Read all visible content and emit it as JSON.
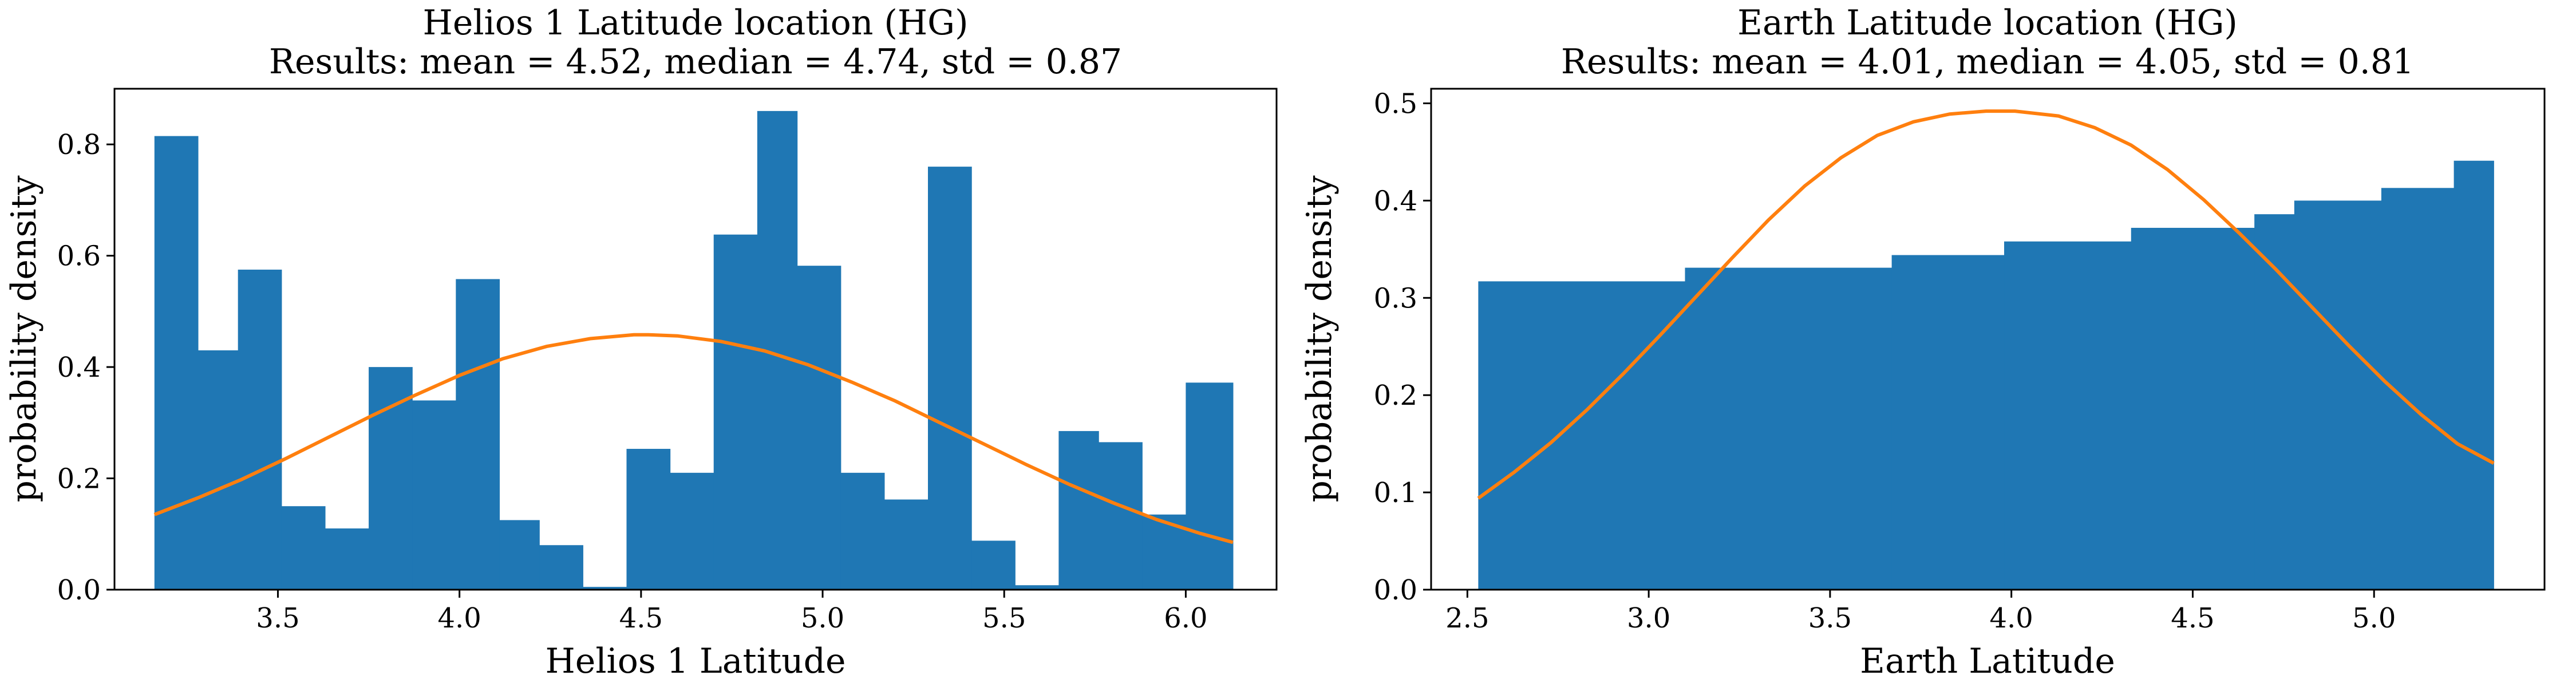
{
  "chart_data": [
    {
      "type": "bar",
      "title": "Helios 1 Latitude location (HG)",
      "subtitle": "Results: mean = 4.52, median = 4.74, std = 0.87",
      "xlabel": "Helios 1 Latitude",
      "ylabel": "probability density",
      "xlim": [
        3.05,
        6.25
      ],
      "ylim": [
        0,
        0.9
      ],
      "xticks": [
        3.5,
        4.0,
        4.5,
        5.0,
        5.5,
        6.0
      ],
      "xtick_labels": [
        "3.5",
        "4.0",
        "4.5",
        "5.0",
        "5.5",
        "6.0"
      ],
      "yticks": [
        0.0,
        0.2,
        0.4,
        0.6,
        0.8
      ],
      "ytick_labels": [
        "0.0",
        "0.2",
        "0.4",
        "0.6",
        "0.8"
      ],
      "grid": false,
      "bar_color": "#1f77b4",
      "curve_color": "#ff7f0e",
      "bins": [
        {
          "x0": 3.16,
          "x1": 3.28,
          "value": 0.815
        },
        {
          "x0": 3.28,
          "x1": 3.39,
          "value": 0.43
        },
        {
          "x0": 3.39,
          "x1": 3.51,
          "value": 0.575
        },
        {
          "x0": 3.51,
          "x1": 3.63,
          "value": 0.15
        },
        {
          "x0": 3.63,
          "x1": 3.75,
          "value": 0.11
        },
        {
          "x0": 3.75,
          "x1": 3.87,
          "value": 0.4
        },
        {
          "x0": 3.87,
          "x1": 3.99,
          "value": 0.34
        },
        {
          "x0": 3.99,
          "x1": 4.11,
          "value": 0.558
        },
        {
          "x0": 4.11,
          "x1": 4.22,
          "value": 0.125
        },
        {
          "x0": 4.22,
          "x1": 4.34,
          "value": 0.08
        },
        {
          "x0": 4.34,
          "x1": 4.46,
          "value": 0.005
        },
        {
          "x0": 4.46,
          "x1": 4.58,
          "value": 0.253
        },
        {
          "x0": 4.58,
          "x1": 4.7,
          "value": 0.21
        },
        {
          "x0": 4.7,
          "x1": 4.82,
          "value": 0.638
        },
        {
          "x0": 4.82,
          "x1": 4.93,
          "value": 0.86
        },
        {
          "x0": 4.93,
          "x1": 5.05,
          "value": 0.582
        },
        {
          "x0": 5.05,
          "x1": 5.17,
          "value": 0.21
        },
        {
          "x0": 5.17,
          "x1": 5.29,
          "value": 0.162
        },
        {
          "x0": 5.29,
          "x1": 5.41,
          "value": 0.76
        },
        {
          "x0": 5.41,
          "x1": 5.53,
          "value": 0.088
        },
        {
          "x0": 5.53,
          "x1": 5.65,
          "value": 0.008
        },
        {
          "x0": 5.65,
          "x1": 5.76,
          "value": 0.285
        },
        {
          "x0": 5.76,
          "x1": 5.88,
          "value": 0.265
        },
        {
          "x0": 5.88,
          "x1": 6.0,
          "value": 0.135
        },
        {
          "x0": 6.0,
          "x1": 6.13,
          "value": 0.372
        }
      ],
      "curve": {
        "x": [
          3.16,
          3.28,
          3.4,
          3.52,
          3.64,
          3.76,
          3.88,
          4.0,
          4.12,
          4.24,
          4.36,
          4.48,
          4.52,
          4.6,
          4.72,
          4.84,
          4.96,
          5.08,
          5.2,
          5.32,
          5.44,
          5.56,
          5.68,
          5.8,
          5.92,
          6.04,
          6.13
        ],
        "y": [
          0.135,
          0.165,
          0.198,
          0.235,
          0.274,
          0.313,
          0.35,
          0.385,
          0.415,
          0.437,
          0.451,
          0.458,
          0.458,
          0.456,
          0.446,
          0.429,
          0.404,
          0.373,
          0.339,
          0.301,
          0.263,
          0.225,
          0.189,
          0.156,
          0.126,
          0.101,
          0.085
        ]
      }
    },
    {
      "type": "bar",
      "title": "Earth Latitude location (HG)",
      "subtitle": "Results: mean = 4.01, median = 4.05, std = 0.81",
      "xlabel": "Earth Latitude",
      "ylabel": "probability density",
      "xlim": [
        2.4,
        5.47
      ],
      "ylim": [
        0,
        0.515
      ],
      "xticks": [
        2.5,
        3.0,
        3.5,
        4.0,
        4.5,
        5.0
      ],
      "xtick_labels": [
        "2.5",
        "3.0",
        "3.5",
        "4.0",
        "4.5",
        "5.0"
      ],
      "yticks": [
        0.0,
        0.1,
        0.2,
        0.3,
        0.4,
        0.5
      ],
      "ytick_labels": [
        "0.0",
        "0.1",
        "0.2",
        "0.3",
        "0.4",
        "0.5"
      ],
      "grid": false,
      "bar_color": "#1f77b4",
      "curve_color": "#ff7f0e",
      "bins": [
        {
          "x0": 2.53,
          "x1": 3.1,
          "value": 0.317
        },
        {
          "x0": 3.1,
          "x1": 3.67,
          "value": 0.331
        },
        {
          "x0": 3.67,
          "x1": 3.98,
          "value": 0.344
        },
        {
          "x0": 3.98,
          "x1": 4.33,
          "value": 0.358
        },
        {
          "x0": 4.33,
          "x1": 4.67,
          "value": 0.372
        },
        {
          "x0": 4.67,
          "x1": 4.78,
          "value": 0.386
        },
        {
          "x0": 4.78,
          "x1": 5.02,
          "value": 0.4
        },
        {
          "x0": 5.02,
          "x1": 5.22,
          "value": 0.413
        },
        {
          "x0": 5.22,
          "x1": 5.33,
          "value": 0.441
        }
      ],
      "curve": {
        "x": [
          2.53,
          2.63,
          2.73,
          2.83,
          2.93,
          3.03,
          3.13,
          3.23,
          3.33,
          3.43,
          3.53,
          3.63,
          3.73,
          3.83,
          3.93,
          4.01,
          4.13,
          4.23,
          4.33,
          4.43,
          4.53,
          4.63,
          4.73,
          4.83,
          4.93,
          5.03,
          5.13,
          5.23,
          5.33
        ],
        "y": [
          0.094,
          0.121,
          0.151,
          0.185,
          0.222,
          0.261,
          0.301,
          0.341,
          0.38,
          0.415,
          0.444,
          0.467,
          0.481,
          0.489,
          0.492,
          0.492,
          0.487,
          0.475,
          0.457,
          0.432,
          0.401,
          0.366,
          0.329,
          0.29,
          0.251,
          0.214,
          0.18,
          0.15,
          0.13
        ]
      }
    }
  ]
}
